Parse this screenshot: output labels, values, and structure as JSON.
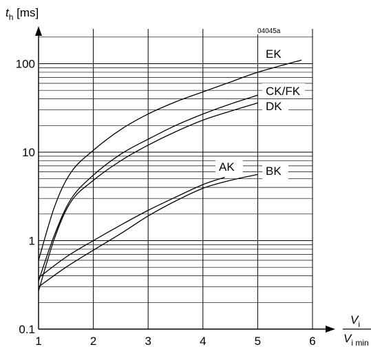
{
  "chart_data": {
    "type": "line",
    "code": "04045a",
    "ylabel": {
      "symbol": "t",
      "sub": "h",
      "unit": "[ms]"
    },
    "xlabel": {
      "num_symbol": "V",
      "num_sub": "i",
      "den_symbol": "V",
      "den_sub": "i min"
    },
    "y_scale": "log",
    "ylim": [
      0.1,
      200
    ],
    "xlim": [
      1,
      6
    ],
    "grid": true,
    "x_ticks": [
      "1",
      "2",
      "3",
      "4",
      "5",
      "6"
    ],
    "y_ticks": [
      "0.1",
      "1",
      "10",
      "100"
    ],
    "series": [
      {
        "name": "EK",
        "x": [
          1,
          1.3,
          1.6,
          2,
          2.5,
          3,
          3.5,
          4,
          4.5,
          5,
          5.8
        ],
        "y": [
          0.6,
          2.5,
          6,
          10.5,
          18,
          27,
          37,
          48,
          62,
          80,
          110
        ]
      },
      {
        "name": "CK/FK",
        "x": [
          1,
          1.3,
          1.6,
          2,
          2.5,
          3,
          3.5,
          4,
          4.5,
          5
        ],
        "y": [
          0.35,
          1.2,
          3,
          5.5,
          9.5,
          14,
          20,
          27,
          35,
          44
        ]
      },
      {
        "name": "DK",
        "x": [
          1,
          1.3,
          1.6,
          2,
          2.5,
          3,
          3.5,
          4,
          4.5,
          5
        ],
        "y": [
          0.27,
          1.1,
          2.8,
          4.8,
          8,
          12,
          17,
          23,
          29,
          36
        ]
      },
      {
        "name": "AK",
        "x": [
          1,
          1.5,
          2,
          2.5,
          3,
          3.5,
          4,
          4.4
        ],
        "y": [
          0.38,
          0.65,
          1,
          1.5,
          2.2,
          3.1,
          4.3,
          5.2
        ]
      },
      {
        "name": "BK",
        "x": [
          1,
          1.5,
          2,
          2.5,
          3,
          3.5,
          4,
          4.5,
          5
        ],
        "y": [
          0.3,
          0.5,
          0.78,
          1.2,
          1.9,
          2.8,
          3.9,
          4.8,
          5.6
        ]
      }
    ]
  }
}
